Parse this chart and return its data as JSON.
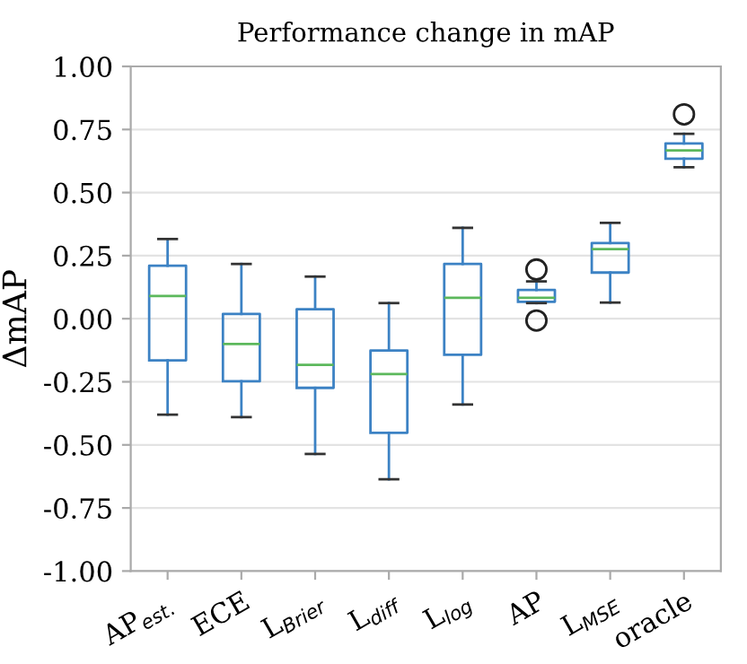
{
  "chart_data": {
    "type": "box",
    "title": "Performance change in mAP",
    "ylabel": "ΔmAP",
    "categories": [
      "AP$_{est.}$",
      "ECE",
      "L$_{Brier}$",
      "L$_{diff}$",
      "L$_{log}$",
      "AP",
      "L$_{MSE}$",
      "oracle"
    ],
    "boxes": [
      {
        "low": -0.38,
        "q1": -0.165,
        "median": 0.09,
        "q3": 0.21,
        "high": 0.316
      },
      {
        "low": -0.39,
        "q1": -0.248,
        "median": -0.1,
        "q3": 0.019,
        "high": 0.217
      },
      {
        "low": -0.536,
        "q1": -0.274,
        "median": -0.183,
        "q3": 0.038,
        "high": 0.167
      },
      {
        "low": -0.636,
        "q1": -0.452,
        "median": -0.219,
        "q3": -0.126,
        "high": 0.062
      },
      {
        "low": -0.34,
        "q1": -0.143,
        "median": 0.083,
        "q3": 0.217,
        "high": 0.36
      },
      {
        "low": 0.062,
        "q1": 0.067,
        "median": 0.083,
        "q3": 0.114,
        "high": 0.148,
        "outliers": [
          0.195,
          -0.007
        ]
      },
      {
        "low": 0.064,
        "q1": 0.183,
        "median": 0.276,
        "q3": 0.3,
        "high": 0.38
      },
      {
        "low": 0.6,
        "q1": 0.634,
        "median": 0.667,
        "q3": 0.695,
        "high": 0.733,
        "outliers": [
          0.81
        ]
      }
    ],
    "color": "#3c82c4",
    "ylim": [
      -1.0,
      1.0
    ],
    "yticks": [
      {
        "value": -1.0,
        "label": "-1.00"
      },
      {
        "value": -0.75,
        "label": "-0.75"
      },
      {
        "value": -0.5,
        "label": "-0.50"
      },
      {
        "value": -0.25,
        "label": "-0.25"
      },
      {
        "value": 0.0,
        "label": "0.00"
      },
      {
        "value": 0.25,
        "label": "0.25"
      },
      {
        "value": 0.5,
        "label": "0.50"
      },
      {
        "value": 0.75,
        "label": "0.75"
      },
      {
        "value": 1.0,
        "label": "1.00"
      }
    ],
    "grid": "y"
  }
}
